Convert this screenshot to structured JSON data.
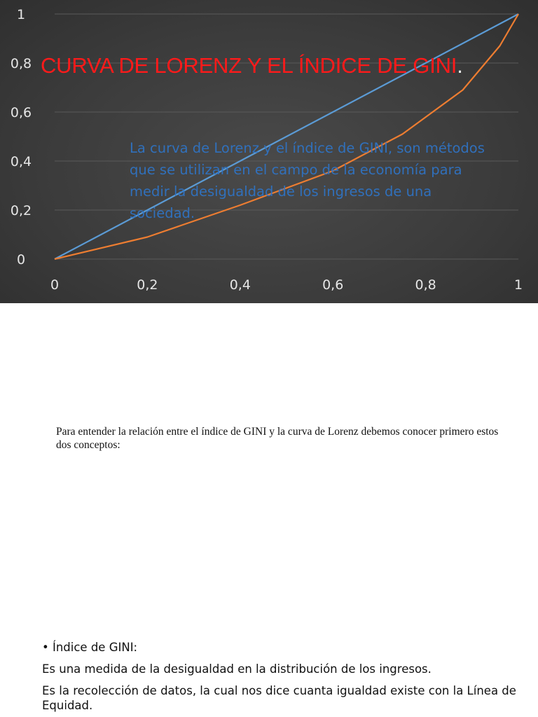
{
  "slide": {
    "title": "CURVA DE LORENZ Y EL ÍNDICE DE GINI",
    "title_dot": ".",
    "body": "La curva de Lorenz y el índice de GINI, son métodos que se utilizan en el campo de la economía para medir la desigualdad de los ingresos de una sociedad.",
    "colors": {
      "title": "#ff1a1a",
      "body": "#2f74c6",
      "background": "#3b3b3b"
    }
  },
  "chart_data": {
    "type": "line",
    "x_ticks": [
      "0",
      "0,2",
      "0,4",
      "0,6",
      "0,8",
      "1"
    ],
    "y_ticks": [
      "0",
      "0,2",
      "0,4",
      "0,6",
      "0,8",
      "1"
    ],
    "xlim": [
      0,
      1
    ],
    "ylim": [
      0,
      1
    ],
    "grid": true,
    "series": [
      {
        "color": "#5b9bd5",
        "points": [
          [
            0,
            0
          ],
          [
            1,
            1
          ]
        ]
      },
      {
        "color": "#ed7d31",
        "points": [
          [
            0,
            0
          ],
          [
            0.2,
            0.09
          ],
          [
            0.4,
            0.22
          ],
          [
            0.6,
            0.36
          ],
          [
            0.75,
            0.51
          ],
          [
            0.88,
            0.69
          ],
          [
            0.96,
            0.87
          ],
          [
            1,
            1
          ]
        ]
      }
    ]
  },
  "intro": {
    "text": "Para entender la relación entre el índice de GINI y la curva de Lorenz debemos conocer primero estos dos conceptos:"
  },
  "gini": {
    "bullet": "• Índice de GINI:",
    "definition": "Es una medida de la desigualdad en la distribución de los ingresos.",
    "detail": "Es la recolección de datos, la cual nos dice cuanta igualdad existe con la Línea de Equidad."
  }
}
